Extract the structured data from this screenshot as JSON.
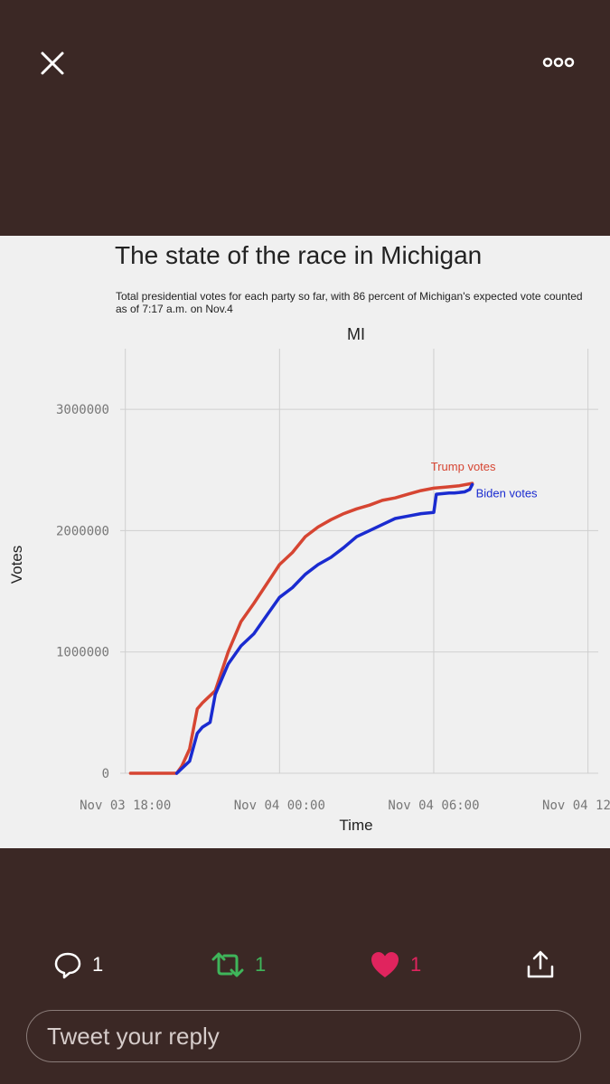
{
  "nav": {
    "close_icon": "close-icon",
    "more_icon": "more-icon"
  },
  "figure": {
    "title": "The state of the race in Michigan",
    "subtitle": "Total presidential votes for each party so far, with 86 percent of Michigan's expected vote counted as of 7:17 a.m. on Nov.4"
  },
  "chart_data": {
    "type": "line",
    "title": "MI",
    "xlabel": "Time",
    "ylabel": "Votes",
    "x_ticks": [
      "Nov 03 18:00",
      "Nov 04 00:00",
      "Nov 04 06:00",
      "Nov 04 12:00"
    ],
    "y_ticks": [
      "0",
      "1000000",
      "2000000",
      "3000000"
    ],
    "ylim": [
      0,
      3500000
    ],
    "x_unit": "hours since Nov 03 18:00",
    "xlim": [
      -0.2,
      18.4
    ],
    "series": [
      {
        "name": "Trump votes",
        "color": "#d64532",
        "x": [
          0.2,
          2.0,
          2.2,
          2.5,
          2.8,
          3.0,
          3.2,
          3.5,
          4.0,
          4.5,
          5.0,
          5.5,
          6.0,
          6.5,
          7.0,
          7.5,
          8.0,
          8.5,
          9.0,
          9.5,
          10.0,
          10.5,
          11.0,
          11.5,
          12.0,
          12.5,
          13.0,
          13.5
        ],
        "y": [
          0,
          0,
          60000,
          200000,
          530000,
          580000,
          620000,
          680000,
          1000000,
          1250000,
          1400000,
          1560000,
          1720000,
          1820000,
          1950000,
          2030000,
          2090000,
          2140000,
          2180000,
          2210000,
          2250000,
          2270000,
          2300000,
          2330000,
          2350000,
          2360000,
          2370000,
          2390000
        ]
      },
      {
        "name": "Biden votes",
        "color": "#1a2bd0",
        "x": [
          2.0,
          2.2,
          2.5,
          2.8,
          3.0,
          3.3,
          3.5,
          4.0,
          4.5,
          5.0,
          5.5,
          6.0,
          6.5,
          7.0,
          7.5,
          8.0,
          8.5,
          9.0,
          9.5,
          10.0,
          10.5,
          11.0,
          11.5,
          12.0,
          12.1,
          12.6,
          12.8,
          13.2,
          13.4,
          13.5
        ],
        "y": [
          0,
          40000,
          100000,
          330000,
          380000,
          420000,
          650000,
          900000,
          1050000,
          1150000,
          1300000,
          1450000,
          1530000,
          1640000,
          1720000,
          1780000,
          1860000,
          1950000,
          2000000,
          2050000,
          2100000,
          2120000,
          2140000,
          2150000,
          2300000,
          2310000,
          2310000,
          2320000,
          2340000,
          2380000
        ]
      }
    ],
    "annotations": [
      {
        "text": "Trump votes",
        "series": "Trump votes"
      },
      {
        "text": "Biden votes",
        "series": "Biden votes"
      }
    ]
  },
  "actions": {
    "reply_icon": "reply-icon",
    "reply_count": "1",
    "retweet_icon": "retweet-icon",
    "retweet_count": "1",
    "like_icon": "heart-icon",
    "like_count": "1",
    "share_icon": "share-icon"
  },
  "reply_box": {
    "placeholder": "Tweet your reply"
  },
  "colors": {
    "background": "#3b2825",
    "retweet": "#3fb55a",
    "like": "#e0245e",
    "text": "#ffffff"
  }
}
